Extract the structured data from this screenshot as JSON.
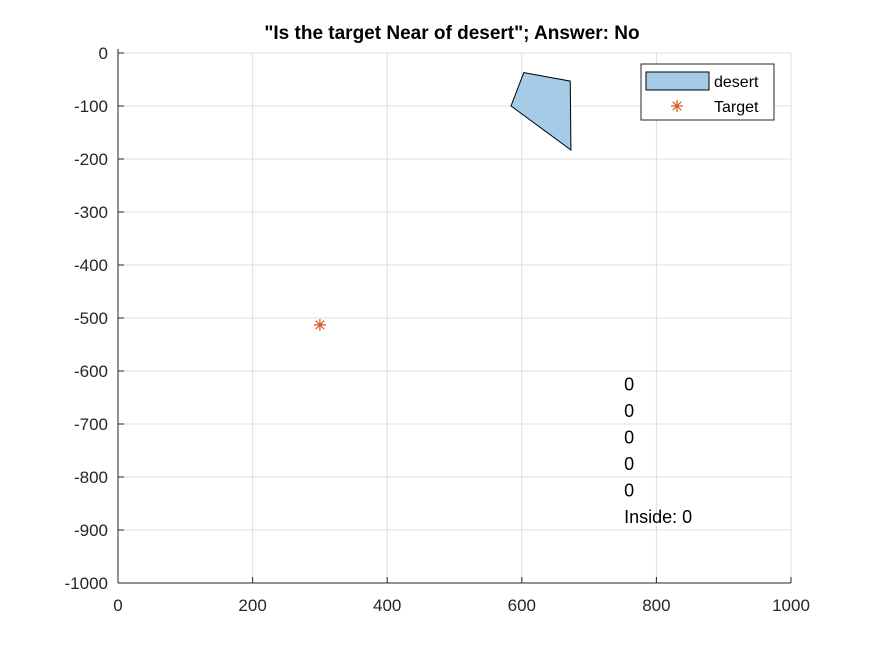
{
  "chart_data": {
    "type": "scatter",
    "title": "\"Is the target Near of desert\"; Answer: No",
    "xlabel": "",
    "ylabel": "",
    "xlim": [
      0,
      1000
    ],
    "ylim": [
      -1000,
      0
    ],
    "xticks": [
      0,
      200,
      400,
      600,
      800,
      1000
    ],
    "yticks": [
      0,
      -100,
      -200,
      -300,
      -400,
      -500,
      -600,
      -700,
      -800,
      -900,
      -1000
    ],
    "x_tick_labels": [
      "0",
      "200",
      "400",
      "600",
      "800",
      "1000"
    ],
    "y_tick_labels": [
      "0",
      "-100",
      "-200",
      "-300",
      "-400",
      "-500",
      "-600",
      "-700",
      "-800",
      "-900",
      "-1000"
    ],
    "grid": true,
    "legend_position": "top-right",
    "series": [
      {
        "name": "desert",
        "kind": "polygon",
        "color": "#a6cbe6",
        "edge_color": "#000000",
        "x": [
          603,
          672,
          673,
          584
        ],
        "y": [
          -37,
          -53,
          -183,
          -100
        ]
      },
      {
        "name": "Target",
        "kind": "marker",
        "marker": "asterisk",
        "color": "#d95319",
        "x": [
          300
        ],
        "y": [
          -513
        ]
      }
    ],
    "annotations": {
      "x": 752,
      "lines": [
        "0",
        "0",
        "0",
        "0",
        "0",
        "Inside: 0"
      ],
      "y": [
        -625,
        -675,
        -725,
        -775,
        -825,
        -875
      ]
    }
  }
}
